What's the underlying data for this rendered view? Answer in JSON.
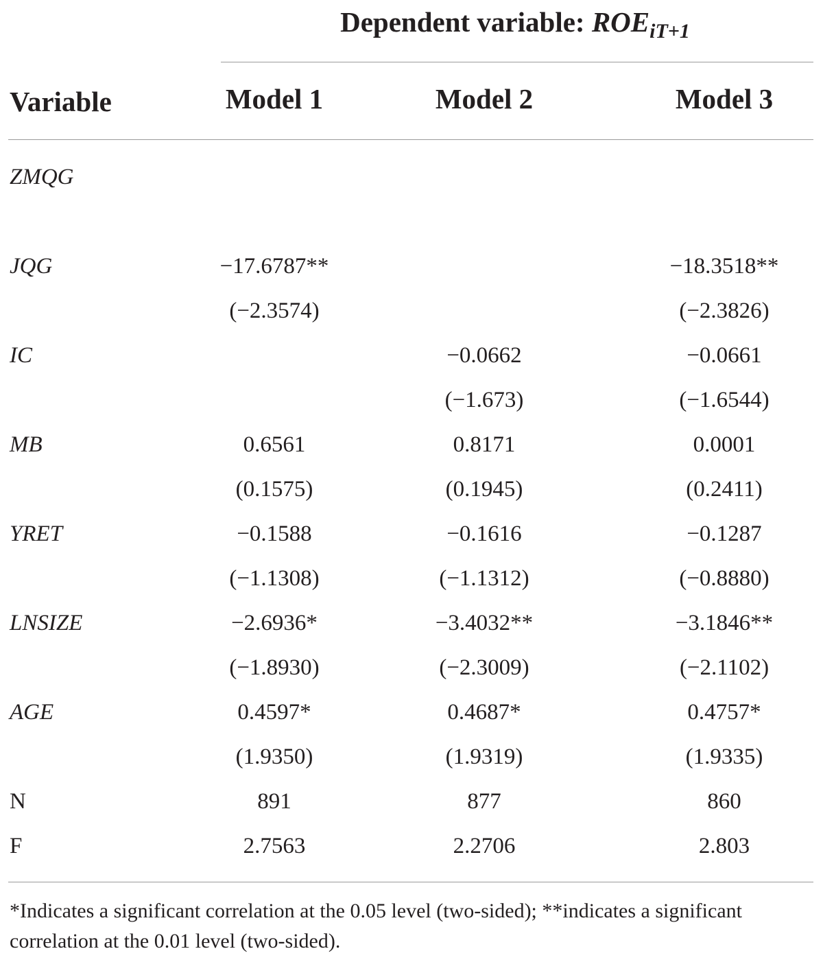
{
  "table": {
    "dependent_variable_label": "Dependent variable:",
    "dependent_variable_name": "ROE",
    "dependent_variable_subscript": "iT+1",
    "columns": [
      "Variable",
      "Model 1",
      "Model 2",
      "Model 3"
    ],
    "rows": [
      {
        "variable": "ZMQG",
        "coef": [
          "",
          "",
          ""
        ],
        "tstat": [
          "",
          "",
          ""
        ]
      },
      {
        "variable": "JQG",
        "coef": [
          "−17.6787**",
          "",
          "−18.3518**"
        ],
        "tstat": [
          "(−2.3574)",
          "",
          "(−2.3826)"
        ]
      },
      {
        "variable": "IC",
        "coef": [
          "",
          "−0.0662",
          "−0.0661"
        ],
        "tstat": [
          "",
          "(−1.673)",
          "(−1.6544)"
        ]
      },
      {
        "variable": "MB",
        "coef": [
          "0.6561",
          "0.8171",
          "0.0001"
        ],
        "tstat": [
          "(0.1575)",
          "(0.1945)",
          "(0.2411)"
        ]
      },
      {
        "variable": "YRET",
        "coef": [
          "−0.1588",
          "−0.1616",
          "−0.1287"
        ],
        "tstat": [
          "(−1.1308)",
          "(−1.1312)",
          "(−0.8880)"
        ]
      },
      {
        "variable": "LNSIZE",
        "coef": [
          "−2.6936*",
          "−3.4032**",
          "−3.1846**"
        ],
        "tstat": [
          "(−1.8930)",
          "(−2.3009)",
          "(−2.1102)"
        ]
      },
      {
        "variable": "AGE",
        "coef": [
          "0.4597*",
          "0.4687*",
          "0.4757*"
        ],
        "tstat": [
          "(1.9350)",
          "(1.9319)",
          "(1.9335)"
        ]
      }
    ],
    "stats": [
      {
        "label": "N",
        "values": [
          "891",
          "877",
          "860"
        ]
      },
      {
        "label": "F",
        "values": [
          "2.7563",
          "2.2706",
          "2.803"
        ]
      }
    ],
    "footnote": "*Indicates a significant correlation at the 0.05 level (two-sided); **indicates a significant correlation at the 0.01 level (two-sided)."
  }
}
